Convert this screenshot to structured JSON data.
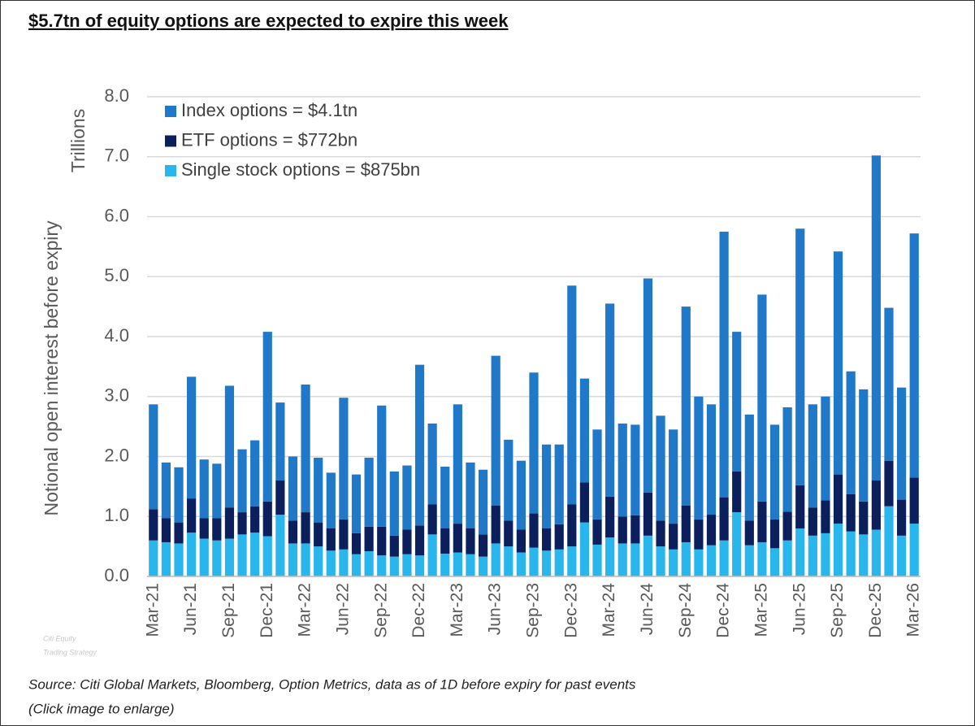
{
  "chart_data": {
    "type": "stacked_bar",
    "title": "$5.7tn of equity options are expected to expire this week",
    "y_axis_title": "Notional open interest before expiry",
    "y_axis_unit": "Trillions",
    "source": "Source: Citi Global Markets, Bloomberg, Option Metrics, data as of 1D before expiry for past events",
    "note": "(Click image to enlarge)",
    "watermark": [
      "Citi Equity",
      "Trading Strategy"
    ],
    "categories": [
      "Mar-21",
      null,
      null,
      "Jun-21",
      null,
      null,
      "Sep-21",
      null,
      null,
      "Dec-21",
      null,
      null,
      "Mar-22",
      null,
      null,
      "Jun-22",
      null,
      null,
      "Sep-22",
      null,
      null,
      "Dec-22",
      null,
      null,
      "Mar-23",
      null,
      null,
      "Jun-23",
      null,
      null,
      "Sep-23",
      null,
      null,
      "Dec-23",
      null,
      null,
      "Mar-24",
      null,
      null,
      "Jun-24",
      null,
      null,
      "Sep-24",
      null,
      null,
      "Dec-24",
      null,
      null,
      "Mar-25",
      null,
      null,
      "Jun-25",
      null,
      null,
      "Sep-25",
      null,
      null,
      "Dec-25",
      null,
      null,
      "Mar-26"
    ],
    "series": [
      {
        "name": "Index options = $4.1tn",
        "color": "#1f78c8",
        "values": [
          1.75,
          0.93,
          0.92,
          2.03,
          0.98,
          0.91,
          2.03,
          1.05,
          1.1,
          2.83,
          1.3,
          1.07,
          2.13,
          1.08,
          0.93,
          2.03,
          0.98,
          1.15,
          2.02,
          1.07,
          1.07,
          2.68,
          1.35,
          1.03,
          1.99,
          1.1,
          1.08,
          2.5,
          1.35,
          1.15,
          2.35,
          1.4,
          1.33,
          3.65,
          1.73,
          1.5,
          3.22,
          1.55,
          1.51,
          3.57,
          1.75,
          1.57,
          3.32,
          2.05,
          1.84,
          4.43,
          2.33,
          1.77,
          3.45,
          1.58,
          1.74,
          4.28,
          1.72,
          1.73,
          3.72,
          2.05,
          1.87,
          5.42,
          2.55,
          1.87,
          4.07
        ]
      },
      {
        "name": "ETF options = $772bn",
        "color": "#0b1f5c",
        "values": [
          0.52,
          0.4,
          0.35,
          0.57,
          0.34,
          0.37,
          0.52,
          0.37,
          0.44,
          0.58,
          0.57,
          0.38,
          0.52,
          0.4,
          0.37,
          0.5,
          0.35,
          0.41,
          0.48,
          0.35,
          0.41,
          0.5,
          0.5,
          0.42,
          0.48,
          0.43,
          0.37,
          0.63,
          0.43,
          0.38,
          0.57,
          0.37,
          0.42,
          0.7,
          0.67,
          0.42,
          0.68,
          0.45,
          0.47,
          0.72,
          0.43,
          0.43,
          0.61,
          0.5,
          0.51,
          0.72,
          0.68,
          0.41,
          0.68,
          0.48,
          0.48,
          0.72,
          0.47,
          0.55,
          0.82,
          0.62,
          0.55,
          0.82,
          0.76,
          0.6,
          0.77
        ]
      },
      {
        "name": "Single stock options = $875bn",
        "color": "#29b6ec",
        "values": [
          0.6,
          0.57,
          0.55,
          0.73,
          0.63,
          0.6,
          0.63,
          0.7,
          0.73,
          0.67,
          1.03,
          0.55,
          0.55,
          0.5,
          0.43,
          0.45,
          0.37,
          0.42,
          0.35,
          0.33,
          0.37,
          0.35,
          0.7,
          0.38,
          0.4,
          0.37,
          0.33,
          0.55,
          0.5,
          0.4,
          0.48,
          0.43,
          0.45,
          0.5,
          0.9,
          0.53,
          0.65,
          0.55,
          0.55,
          0.68,
          0.5,
          0.45,
          0.57,
          0.45,
          0.52,
          0.6,
          1.07,
          0.52,
          0.57,
          0.47,
          0.6,
          0.8,
          0.68,
          0.72,
          0.88,
          0.75,
          0.7,
          0.78,
          1.17,
          0.68,
          0.88
        ]
      }
    ],
    "ylim": [
      0,
      8
    ],
    "yticks": [
      {
        "value": 0,
        "label": "0.0"
      },
      {
        "value": 1,
        "label": "1.0"
      },
      {
        "value": 2,
        "label": "2.0"
      },
      {
        "value": 3,
        "label": "3.0"
      },
      {
        "value": 4,
        "label": "4.0"
      },
      {
        "value": 5,
        "label": "5.0"
      },
      {
        "value": 6,
        "label": "6.0"
      },
      {
        "value": 7,
        "label": "7.0"
      },
      {
        "value": 8,
        "label": "8.0"
      }
    ],
    "grid": true,
    "legend": "top-left"
  }
}
